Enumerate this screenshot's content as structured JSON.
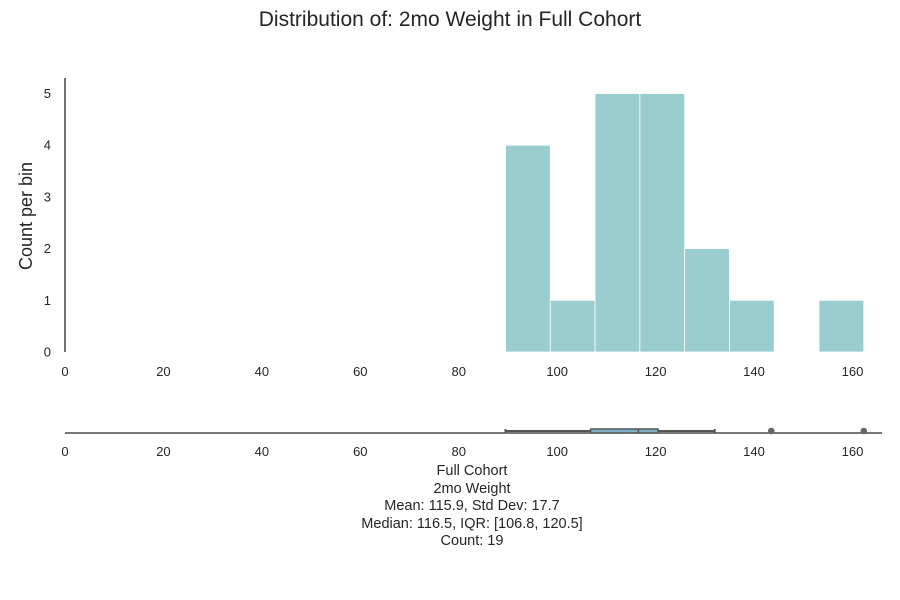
{
  "chart_data": {
    "type": "histogram",
    "title": "Distribution of: 2mo Weight in Full Cohort",
    "ylabel": "Count per bin",
    "xlim": [
      0,
      166
    ],
    "ylim": [
      0,
      5.3
    ],
    "x_ticks": [
      "0",
      "20",
      "40",
      "60",
      "80",
      "100",
      "120",
      "140",
      "160"
    ],
    "y_ticks": [
      "0",
      "1",
      "2",
      "3",
      "4",
      "5"
    ],
    "bar_color": "#9ACDCE",
    "bins": [
      {
        "x0": 89.5,
        "x1": 98.6,
        "count": 4
      },
      {
        "x0": 98.6,
        "x1": 107.7,
        "count": 1
      },
      {
        "x0": 107.7,
        "x1": 116.8,
        "count": 5
      },
      {
        "x0": 116.8,
        "x1": 125.9,
        "count": 5
      },
      {
        "x0": 125.9,
        "x1": 135.0,
        "count": 2
      },
      {
        "x0": 135.0,
        "x1": 144.1,
        "count": 1
      },
      {
        "x0": 144.1,
        "x1": 153.2,
        "count": 0
      },
      {
        "x0": 153.2,
        "x1": 162.3,
        "count": 1
      }
    ],
    "boxplot": {
      "whisker_low": 89.5,
      "q1": 106.8,
      "median": 116.5,
      "q3": 120.5,
      "whisker_high": 132,
      "outliers": [
        143.5,
        162.3
      ],
      "box_color": "#7EB0C6"
    }
  },
  "summary": {
    "group": "Full Cohort",
    "variable": "2mo Weight",
    "mean_sd": "Mean: 115.9, Std Dev: 17.7",
    "median_iqr": "Median: 116.5, IQR: [106.8, 120.5]",
    "count": "Count: 19"
  }
}
